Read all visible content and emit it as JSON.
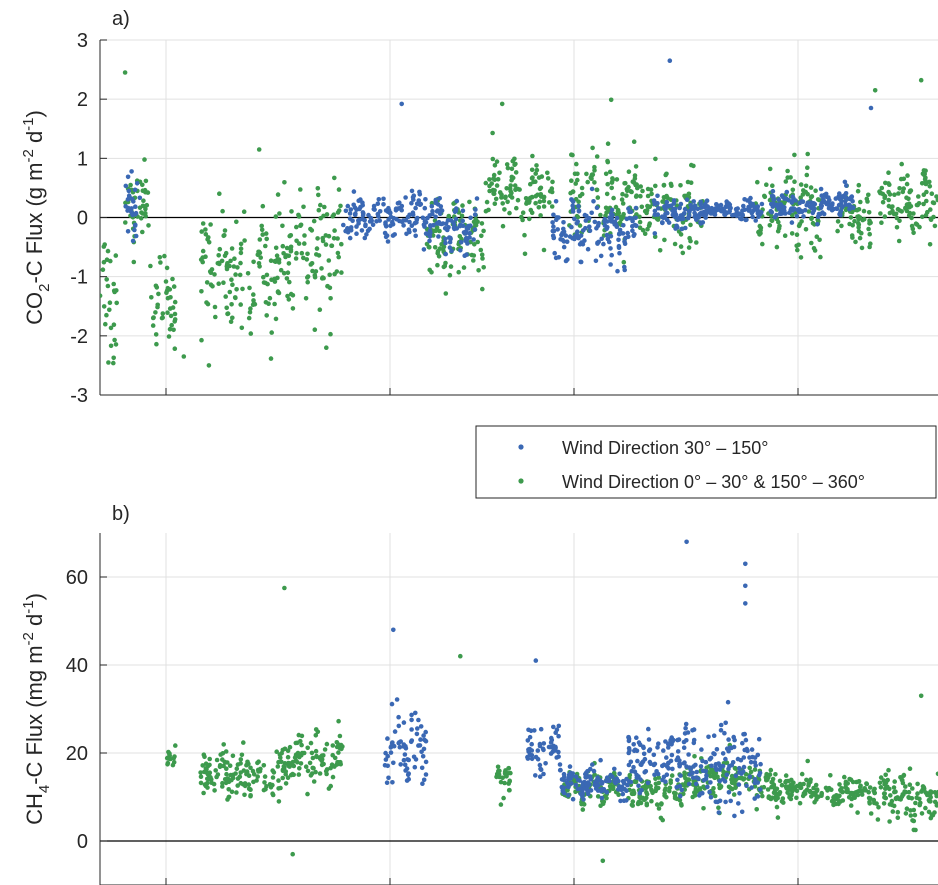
{
  "chart_data": [
    {
      "type": "scatter",
      "panel_label": "a)",
      "ylabel": {
        "main": "CO",
        "sub": "2",
        "tail": "-C Flux (g m",
        "sup1": "-2",
        "mid": " d",
        "sup2": "-1",
        "end": ")"
      },
      "ylim": [
        -3,
        3
      ],
      "yticks": [
        "-3",
        "-2",
        "-1",
        "0",
        "1",
        "2",
        "3"
      ],
      "grid": true,
      "zero_line": true,
      "series": [
        {
          "name": "Wind Direction 30° – 150°",
          "color": "#3a68b4",
          "clusters": [
            {
              "from": 3,
              "to": 5,
              "mean": 0.2,
              "spread": 0.5
            },
            {
              "from": 29,
              "to": 41,
              "mean": 0.0,
              "spread": 0.3
            },
            {
              "from": 41,
              "to": 45,
              "mean": -0.2,
              "spread": 0.3
            },
            {
              "from": 54,
              "to": 64,
              "mean": -0.25,
              "spread": 0.4
            },
            {
              "from": 66,
              "to": 72,
              "mean": 0.1,
              "spread": 0.2
            },
            {
              "from": 72,
              "to": 79,
              "mean": 0.12,
              "spread": 0.15
            },
            {
              "from": 80,
              "to": 90,
              "mean": 0.2,
              "spread": 0.2
            }
          ],
          "outliers": [
            [
              36,
              1.92
            ],
            [
              68,
              2.65
            ],
            [
              92,
              1.85
            ]
          ]
        },
        {
          "name": "Wind Direction 0° – 30° & 150° – 360°",
          "color": "#3d9a4d",
          "clusters": [
            {
              "from": 0,
              "to": 2,
              "mean": -1.2,
              "spread": 0.9
            },
            {
              "from": 3,
              "to": 6,
              "mean": 0.2,
              "spread": 0.5
            },
            {
              "from": 6,
              "to": 9,
              "mean": -1.4,
              "spread": 0.6
            },
            {
              "from": 12,
              "to": 22,
              "mean": -0.9,
              "spread": 0.8
            },
            {
              "from": 22,
              "to": 29,
              "mean": -0.6,
              "spread": 0.8
            },
            {
              "from": 39,
              "to": 46,
              "mean": -0.4,
              "spread": 0.5
            },
            {
              "from": 46,
              "to": 54,
              "mean": 0.4,
              "spread": 0.5
            },
            {
              "from": 56,
              "to": 65,
              "mean": 0.3,
              "spread": 0.6
            },
            {
              "from": 65,
              "to": 72,
              "mean": 0.1,
              "spread": 0.5
            },
            {
              "from": 78,
              "to": 86,
              "mean": 0.2,
              "spread": 0.6
            },
            {
              "from": 88,
              "to": 92,
              "mean": 0.0,
              "spread": 0.4
            },
            {
              "from": 93,
              "to": 100,
              "mean": 0.2,
              "spread": 0.45
            }
          ],
          "outliers": [
            [
              3,
              2.45
            ],
            [
              19,
              1.15
            ],
            [
              48,
              1.92
            ],
            [
              61,
              1.99
            ],
            [
              92.5,
              2.15
            ],
            [
              98,
              2.32
            ],
            [
              1,
              -2.45
            ],
            [
              13,
              -2.5
            ],
            [
              10,
              -2.35
            ],
            [
              27,
              -2.2
            ]
          ]
        }
      ]
    },
    {
      "type": "scatter",
      "panel_label": "b)",
      "ylabel": {
        "main": "CH",
        "sub": "4",
        "tail": "-C Flux (mg m",
        "sup1": "-2",
        "mid": " d",
        "sup2": "-1",
        "end": ")"
      },
      "ylim": [
        -10,
        70
      ],
      "yticks": [
        "0",
        "20",
        "40",
        "60"
      ],
      "grid": true,
      "zero_line": true,
      "series": [
        {
          "name": "Wind Direction 30° – 150°",
          "color": "#3a68b4",
          "clusters": [
            {
              "from": 34,
              "to": 39,
              "mean": 22,
              "spread": 7
            },
            {
              "from": 51,
              "to": 55,
              "mean": 20,
              "spread": 5
            },
            {
              "from": 55,
              "to": 63,
              "mean": 13,
              "spread": 3
            },
            {
              "from": 63,
              "to": 69,
              "mean": 18,
              "spread": 6
            },
            {
              "from": 69,
              "to": 79,
              "mean": 17,
              "spread": 8
            }
          ],
          "outliers": [
            [
              35,
              48
            ],
            [
              52,
              41
            ],
            [
              70,
              68
            ],
            [
              77,
              63
            ],
            [
              77,
              58
            ],
            [
              77,
              54
            ]
          ]
        },
        {
          "name": "Wind Direction 0° – 30° & 150° – 360°",
          "color": "#3d9a4d",
          "clusters": [
            {
              "from": 8,
              "to": 9,
              "mean": 19,
              "spread": 3
            },
            {
              "from": 12,
              "to": 22,
              "mean": 15,
              "spread": 5
            },
            {
              "from": 22,
              "to": 29,
              "mean": 18,
              "spread": 5
            },
            {
              "from": 47,
              "to": 49,
              "mean": 14,
              "spread": 3
            },
            {
              "from": 55,
              "to": 62,
              "mean": 12,
              "spread": 3
            },
            {
              "from": 63,
              "to": 69,
              "mean": 11,
              "spread": 3
            },
            {
              "from": 69,
              "to": 79,
              "mean": 14,
              "spread": 4
            },
            {
              "from": 79,
              "to": 87,
              "mean": 12,
              "spread": 3
            },
            {
              "from": 87,
              "to": 92,
              "mean": 11,
              "spread": 3
            },
            {
              "from": 92,
              "to": 100,
              "mean": 10,
              "spread": 4
            }
          ],
          "outliers": [
            [
              22,
              57.5
            ],
            [
              43,
              42
            ],
            [
              23,
              -3
            ],
            [
              60,
              -4.5
            ],
            [
              98,
              33
            ]
          ]
        }
      ]
    }
  ],
  "legend": {
    "entries": [
      "Wind Direction 30° – 150°",
      "Wind Direction 0° – 30° & 150° – 360°"
    ],
    "colors": [
      "#3a68b4",
      "#3d9a4d"
    ]
  }
}
